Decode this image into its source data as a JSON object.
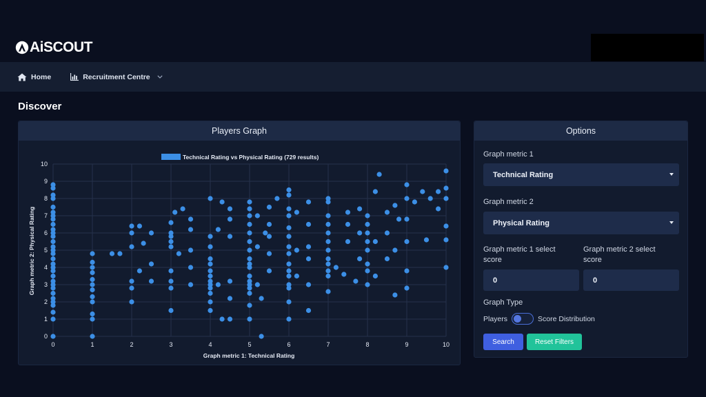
{
  "brand": {
    "name": "AiSCOUT"
  },
  "nav": {
    "home_label": "Home",
    "recruitment_label": "Recruitment Centre"
  },
  "page": {
    "title": "Discover"
  },
  "graph_panel": {
    "title": "Players Graph"
  },
  "options": {
    "title": "Options",
    "metric1_label": "Graph metric 1",
    "metric1_value": "Technical Rating",
    "metric2_label": "Graph metric 2",
    "metric2_value": "Physical Rating",
    "score1_label": "Graph metric 1 select score",
    "score1_value": "0",
    "score2_label": "Graph metric 2 select score",
    "score2_value": "0",
    "graph_type_label": "Graph Type",
    "toggle_left": "Players",
    "toggle_right": "Score Distribution",
    "search_label": "Search",
    "reset_label": "Reset Filters"
  },
  "colors": {
    "point": "#3c8fe6",
    "accent_blue": "#3f5fe0",
    "accent_green": "#21c39a"
  },
  "chart_data": {
    "type": "scatter",
    "title": "",
    "legend": "Technical Rating vs Physical Rating (729 results)",
    "legend_position": "top",
    "xlabel": "Graph metric 1: Technical Rating",
    "ylabel": "Graph metric 2: Physical Rating",
    "xlim": [
      0,
      10
    ],
    "ylim": [
      0,
      10
    ],
    "x_ticks": [
      "0",
      "1",
      "2",
      "3",
      "4",
      "5",
      "6",
      "7",
      "8",
      "9",
      "10"
    ],
    "y_ticks": [
      "0",
      "1",
      "2",
      "3",
      "4",
      "5",
      "6",
      "7",
      "8",
      "9",
      "10"
    ],
    "grid": true,
    "series": [
      {
        "name": "Technical Rating vs Physical Rating (729 results)",
        "points": [
          [
            0,
            0
          ],
          [
            0,
            1
          ],
          [
            0,
            1.4
          ],
          [
            0,
            1.8
          ],
          [
            0,
            2
          ],
          [
            0,
            2.2
          ],
          [
            0,
            2.5
          ],
          [
            0,
            2.8
          ],
          [
            0,
            3
          ],
          [
            0,
            3.2
          ],
          [
            0,
            3.5
          ],
          [
            0,
            3.8
          ],
          [
            0,
            4
          ],
          [
            0,
            4.2
          ],
          [
            0,
            4.5
          ],
          [
            0,
            4.8
          ],
          [
            0,
            5
          ],
          [
            0,
            5.2
          ],
          [
            0,
            5.5
          ],
          [
            0,
            5.8
          ],
          [
            0,
            6
          ],
          [
            0,
            6.2
          ],
          [
            0,
            6.5
          ],
          [
            0,
            6.8
          ],
          [
            0,
            7
          ],
          [
            0,
            7.2
          ],
          [
            0,
            7.5
          ],
          [
            0,
            8
          ],
          [
            0,
            8.2
          ],
          [
            0,
            8.6
          ],
          [
            0,
            8.8
          ],
          [
            1,
            0
          ],
          [
            1,
            1
          ],
          [
            1,
            1.3
          ],
          [
            1,
            2
          ],
          [
            1,
            2.3
          ],
          [
            1,
            2.7
          ],
          [
            1,
            3
          ],
          [
            1,
            3.3
          ],
          [
            1,
            3.7
          ],
          [
            1,
            4
          ],
          [
            1,
            4.3
          ],
          [
            1,
            4.8
          ],
          [
            1.5,
            4.8
          ],
          [
            1.7,
            4.8
          ],
          [
            2,
            2
          ],
          [
            2,
            2.8
          ],
          [
            2,
            3.2
          ],
          [
            2,
            5.2
          ],
          [
            2,
            6
          ],
          [
            2,
            6.4
          ],
          [
            2.2,
            3.8
          ],
          [
            2.2,
            6.4
          ],
          [
            2.3,
            5.4
          ],
          [
            2.5,
            3.2
          ],
          [
            2.5,
            4.2
          ],
          [
            2.5,
            6
          ],
          [
            3,
            1.5
          ],
          [
            3,
            2.8
          ],
          [
            3,
            3.2
          ],
          [
            3,
            3.8
          ],
          [
            3,
            5.2
          ],
          [
            3,
            5.5
          ],
          [
            3,
            5.8
          ],
          [
            3,
            6
          ],
          [
            3,
            6.6
          ],
          [
            3.1,
            7.2
          ],
          [
            3.2,
            4.8
          ],
          [
            3.3,
            7.4
          ],
          [
            3.5,
            3
          ],
          [
            3.5,
            4
          ],
          [
            3.5,
            5
          ],
          [
            3.5,
            6.2
          ],
          [
            3.5,
            6.8
          ],
          [
            4,
            1.5
          ],
          [
            4,
            2
          ],
          [
            4,
            2.5
          ],
          [
            4,
            2.8
          ],
          [
            4,
            3
          ],
          [
            4,
            3.2
          ],
          [
            4,
            3.5
          ],
          [
            4,
            3.8
          ],
          [
            4,
            4.2
          ],
          [
            4,
            4.5
          ],
          [
            4,
            5.2
          ],
          [
            4,
            5.8
          ],
          [
            4,
            8
          ],
          [
            4.2,
            3
          ],
          [
            4.2,
            6.2
          ],
          [
            4.3,
            1
          ],
          [
            4.3,
            7.8
          ],
          [
            4.5,
            1
          ],
          [
            4.5,
            2.2
          ],
          [
            4.5,
            3.2
          ],
          [
            4.5,
            5.8
          ],
          [
            4.5,
            6.8
          ],
          [
            4.5,
            7.4
          ],
          [
            5,
            1
          ],
          [
            5,
            1.8
          ],
          [
            5,
            2.5
          ],
          [
            5,
            2.8
          ],
          [
            5,
            3
          ],
          [
            5,
            3.2
          ],
          [
            5,
            3.5
          ],
          [
            5,
            4
          ],
          [
            5,
            4.2
          ],
          [
            5,
            4.5
          ],
          [
            5,
            5
          ],
          [
            5,
            5.5
          ],
          [
            5,
            6
          ],
          [
            5,
            6.5
          ],
          [
            5,
            7
          ],
          [
            5,
            7.4
          ],
          [
            5,
            7.8
          ],
          [
            5.2,
            3
          ],
          [
            5.2,
            5.2
          ],
          [
            5.2,
            7
          ],
          [
            5.3,
            0
          ],
          [
            5.3,
            2.2
          ],
          [
            5.4,
            6
          ],
          [
            5.5,
            3.8
          ],
          [
            5.5,
            4.8
          ],
          [
            5.5,
            5.8
          ],
          [
            5.5,
            6.5
          ],
          [
            5.5,
            7.5
          ],
          [
            5.7,
            8
          ],
          [
            6,
            1
          ],
          [
            6,
            2
          ],
          [
            6,
            2.8
          ],
          [
            6,
            3
          ],
          [
            6,
            3.5
          ],
          [
            6,
            3.8
          ],
          [
            6,
            4.2
          ],
          [
            6,
            4.8
          ],
          [
            6,
            5.2
          ],
          [
            6,
            5.8
          ],
          [
            6,
            6.3
          ],
          [
            6,
            7
          ],
          [
            6,
            7.4
          ],
          [
            6,
            8.2
          ],
          [
            6,
            8.5
          ],
          [
            6.2,
            3.5
          ],
          [
            6.2,
            5
          ],
          [
            6.2,
            7.2
          ],
          [
            6.5,
            1.5
          ],
          [
            6.5,
            3
          ],
          [
            6.5,
            4.5
          ],
          [
            6.5,
            5.2
          ],
          [
            6.5,
            6.5
          ],
          [
            6.5,
            7.8
          ],
          [
            7,
            2.6
          ],
          [
            7,
            3.5
          ],
          [
            7,
            3.8
          ],
          [
            7,
            4.2
          ],
          [
            7,
            4.5
          ],
          [
            7,
            5
          ],
          [
            7,
            5.5
          ],
          [
            7,
            6
          ],
          [
            7,
            6.5
          ],
          [
            7,
            7
          ],
          [
            7,
            7.8
          ],
          [
            7,
            8
          ],
          [
            7.2,
            4
          ],
          [
            7.4,
            3.6
          ],
          [
            7.5,
            5.5
          ],
          [
            7.5,
            6.5
          ],
          [
            7.5,
            7.2
          ],
          [
            7.7,
            3.2
          ],
          [
            7.8,
            4.5
          ],
          [
            7.8,
            6
          ],
          [
            7.8,
            7.4
          ],
          [
            8,
            3
          ],
          [
            8,
            3.8
          ],
          [
            8,
            4.2
          ],
          [
            8,
            5
          ],
          [
            8,
            5.5
          ],
          [
            8,
            6
          ],
          [
            8,
            6.5
          ],
          [
            8,
            7
          ],
          [
            8.2,
            3.5
          ],
          [
            8.2,
            5.5
          ],
          [
            8.2,
            8.4
          ],
          [
            8.3,
            9.4
          ],
          [
            8.5,
            4.5
          ],
          [
            8.5,
            6
          ],
          [
            8.5,
            7.2
          ],
          [
            8.7,
            2.4
          ],
          [
            8.7,
            5
          ],
          [
            8.7,
            7.6
          ],
          [
            8.8,
            6.8
          ],
          [
            9,
            2.8
          ],
          [
            9,
            3.8
          ],
          [
            9,
            5.5
          ],
          [
            9,
            6.8
          ],
          [
            9,
            8
          ],
          [
            9,
            8.8
          ],
          [
            9.2,
            7.8
          ],
          [
            9.4,
            8.4
          ],
          [
            9.5,
            5.6
          ],
          [
            9.6,
            8
          ],
          [
            9.8,
            8.4
          ],
          [
            9.8,
            7.4
          ],
          [
            10,
            4
          ],
          [
            10,
            5.6
          ],
          [
            10,
            6.4
          ],
          [
            10,
            8
          ],
          [
            10,
            8.6
          ],
          [
            10,
            9.6
          ]
        ]
      }
    ]
  }
}
